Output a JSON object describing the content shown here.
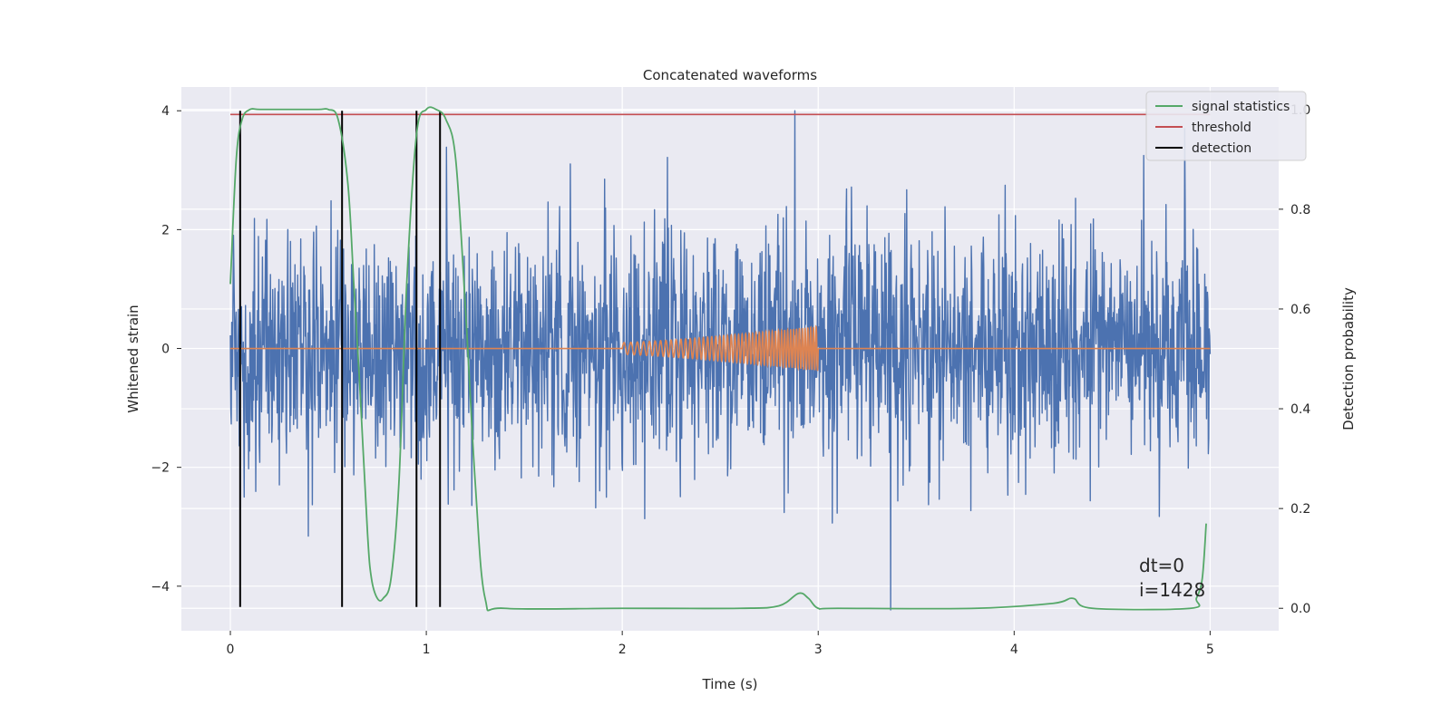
{
  "chart_data": {
    "type": "line",
    "title": "Concatenated waveforms",
    "xlabel": "Time (s)",
    "ylabel": "Whitened strain",
    "ylabel_right": "Detection probability",
    "xlim": [
      -0.25,
      5.35
    ],
    "ylim": [
      -4.75,
      4.4
    ],
    "ylim_right": [
      -0.045,
      1.045
    ],
    "xticks": [
      0,
      1,
      2,
      3,
      4,
      5
    ],
    "yticks": [
      -4,
      -2,
      0,
      2,
      4
    ],
    "yticks_right": [
      0.0,
      0.2,
      0.4,
      0.6,
      0.8,
      1.0
    ],
    "xtick_labels": [
      "0",
      "1",
      "2",
      "3",
      "4",
      "5"
    ],
    "ytick_labels": [
      "−4",
      "−2",
      "0",
      "2",
      "4"
    ],
    "ytick_right_labels": [
      "0.0",
      "0.2",
      "0.4",
      "0.6",
      "0.8",
      "1.0"
    ],
    "grid": true,
    "legend_position": "top-right",
    "legend": [
      "signal statistics",
      "threshold",
      "detection"
    ],
    "colors": {
      "strain": "#4c72b0",
      "template": "#dd8452",
      "signal": "#55a868",
      "threshold": "#c44e52",
      "detection": "#000000",
      "background": "#eaeaf2"
    },
    "strain": {
      "x_range": [
        0,
        5
      ],
      "typical_range": [
        -2.2,
        2.3
      ],
      "extremes": [
        {
          "x": 2.88,
          "y": 4.0
        },
        {
          "x": 3.37,
          "y": -4.4
        },
        {
          "x": 0.07,
          "y": -2.5
        },
        {
          "x": 4.87,
          "y": 3.7
        }
      ]
    },
    "template": {
      "x_range": [
        2.0,
        3.0
      ],
      "amplitude_range": [
        0.1,
        0.37
      ],
      "cycles": 50
    },
    "threshold": 0.99,
    "detections": [
      0.05,
      0.57,
      0.95,
      1.07
    ],
    "signal_statistics": {
      "x": [
        0,
        0.03,
        0.06,
        0.1,
        0.15,
        0.3,
        0.45,
        0.5,
        0.55,
        0.6,
        0.63,
        0.66,
        0.7,
        0.72,
        0.75,
        0.78,
        0.82,
        0.86,
        0.9,
        0.95,
        1.0,
        1.05,
        1.1,
        1.15,
        1.2,
        1.25,
        1.3,
        1.4,
        2.0,
        2.6,
        2.8,
        2.9,
        2.95,
        3.0,
        3.1,
        3.8,
        4.2,
        4.3,
        4.4,
        4.9,
        4.93,
        4.96,
        4.98
      ],
      "y": [
        0.65,
        0.9,
        0.98,
        1.0,
        1.0,
        1.0,
        1.0,
        1.0,
        0.98,
        0.85,
        0.65,
        0.45,
        0.15,
        0.06,
        0.02,
        0.02,
        0.06,
        0.25,
        0.65,
        0.95,
        1.0,
        1.0,
        0.98,
        0.9,
        0.6,
        0.25,
        0.02,
        0.0,
        0.0,
        0.0,
        0.005,
        0.03,
        0.02,
        0.0,
        0.0,
        0.0,
        0.01,
        0.02,
        0.0,
        0.0,
        0.02,
        0.06,
        0.17
      ]
    },
    "annotation": {
      "line1": "dt=0",
      "line2": "i=1428"
    }
  }
}
